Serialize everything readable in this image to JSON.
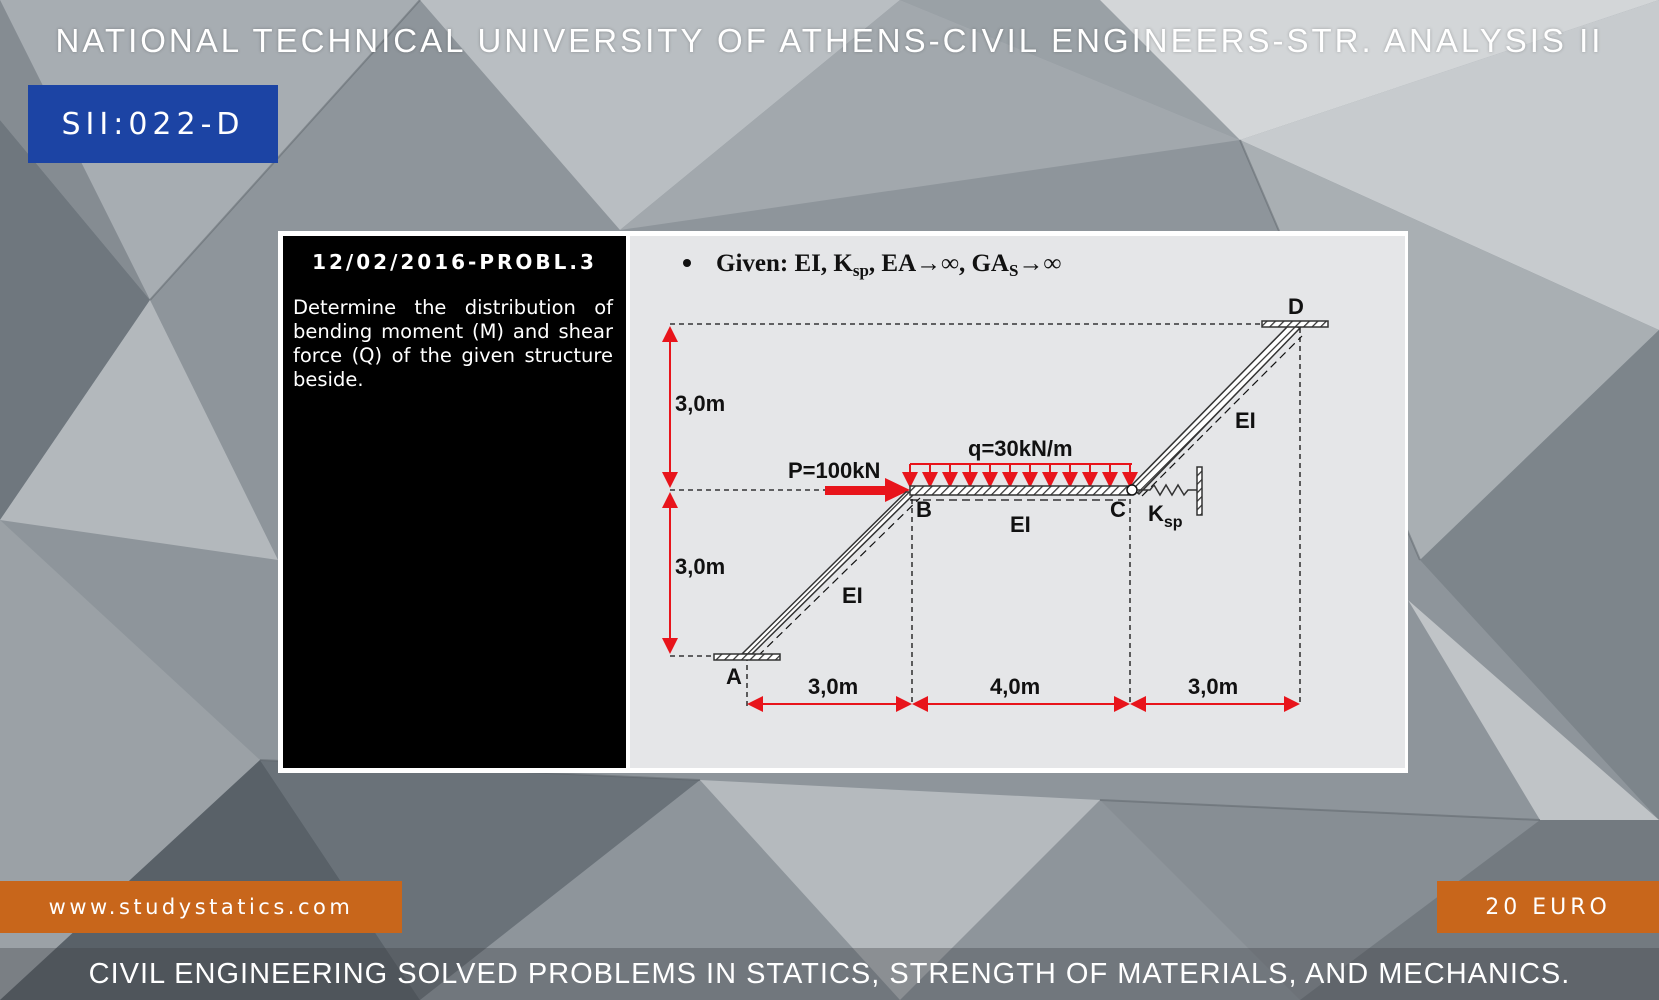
{
  "header": {
    "title": "NATIONAL TECHNICAL UNIVERSITY OF ATHENS-CIVIL ENGINEERS-STR. ANALYSIS II",
    "code": "SII:022-D"
  },
  "problem": {
    "date_label": "12/02/2016-PROBL.3",
    "description": "Determine the distribution of bending moment (M) and shear force (Q) of the given structure beside."
  },
  "diagram": {
    "given_prefix": "Given: EI, K",
    "given_sub1": "sp",
    "given_mid": ", EA→∞, GA",
    "given_sub2": "S",
    "given_end": "→∞",
    "node_a": "A",
    "node_b": "B",
    "node_c": "C",
    "node_d": "D",
    "load_p": "P=100kN",
    "load_q": "q=30kN/m",
    "spring_k": "K",
    "spring_sub": "sp",
    "ei_ab": "EI",
    "ei_bc": "EI",
    "ei_cd": "EI",
    "dim_h_top": "3,0m",
    "dim_h_bottom": "3,0m",
    "dim_ab": "3,0m",
    "dim_bc": "4,0m",
    "dim_cd": "3,0m",
    "colors": {
      "load": "#e8141b",
      "member": "#333333"
    }
  },
  "footer": {
    "website": "www.studystatics.com",
    "price": "20 EURO",
    "tagline": "CIVIL ENGINEERING SOLVED PROBLEMS IN STATICS, STRENGTH OF MATERIALS, AND MECHANICS."
  }
}
